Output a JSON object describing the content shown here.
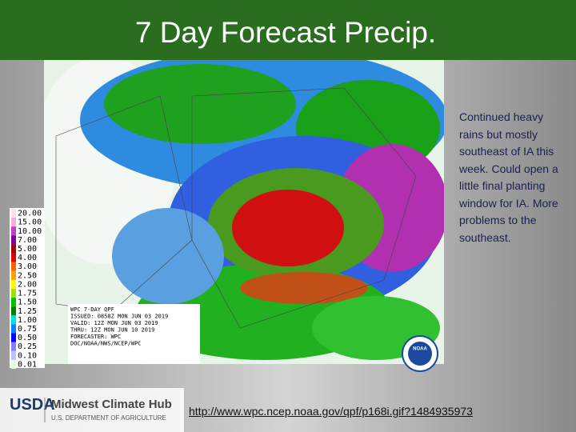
{
  "title": "7 Day Forecast Precip.",
  "legend": [
    {
      "label": "20.00",
      "color": "#ffe0f0"
    },
    {
      "label": "15.00",
      "color": "#f0b0e0"
    },
    {
      "label": "10.00",
      "color": "#c040c0"
    },
    {
      "label": "7.00",
      "color": "#8000a0"
    },
    {
      "label": "5.00",
      "color": "#a00000"
    },
    {
      "label": "4.00",
      "color": "#e00000"
    },
    {
      "label": "3.00",
      "color": "#ff6000"
    },
    {
      "label": "2.50",
      "color": "#ffa000"
    },
    {
      "label": "2.00",
      "color": "#ffff00"
    },
    {
      "label": "1.75",
      "color": "#a0e000"
    },
    {
      "label": "1.50",
      "color": "#00c000"
    },
    {
      "label": "1.25",
      "color": "#008000"
    },
    {
      "label": "1.00",
      "color": "#00e0e0"
    },
    {
      "label": "0.75",
      "color": "#0080ff"
    },
    {
      "label": "0.50",
      "color": "#0000ff"
    },
    {
      "label": "0.25",
      "color": "#8080ff"
    },
    {
      "label": "0.10",
      "color": "#c0c0ff"
    },
    {
      "label": "0.01",
      "color": "#e0ffe0"
    }
  ],
  "map_caption": [
    "WPC 7-DAY QPF",
    "ISSUED: 0858Z MON JUN 03 2019",
    "VALID: 12Z MON JUN 03 2019",
    "THRU: 12Z MON JUN 10 2019",
    "FORECASTER: WPC",
    "DOC/NOAA/NWS/NCEP/WPC"
  ],
  "noaa": "NOAA",
  "note": "Continued heavy rains but mostly southeast of IA this week.  Could open a little final planting window for IA.  More problems to the southeast.",
  "footer": {
    "usda": "USDA",
    "hub": "Midwest Climate Hub",
    "department": "U.S. DEPARTMENT OF AGRICULTURE",
    "link": "http://www.wpc.ncep.noaa.gov/qpf/p168i.gif?1484935973"
  }
}
